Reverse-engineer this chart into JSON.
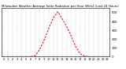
{
  "title": "Milwaukee Weather Average Solar Radiation per Hour W/m2 (Last 24 Hours)",
  "hours": [
    0,
    1,
    2,
    3,
    4,
    5,
    6,
    7,
    8,
    9,
    10,
    11,
    12,
    13,
    14,
    15,
    16,
    17,
    18,
    19,
    20,
    21,
    22,
    23
  ],
  "values": [
    0,
    0,
    0,
    0,
    0,
    0,
    0,
    10,
    80,
    190,
    320,
    440,
    510,
    430,
    340,
    230,
    110,
    30,
    5,
    0,
    0,
    0,
    0,
    0
  ],
  "line_color": "#ff0000",
  "bg_color": "#ffffff",
  "grid_color": "#bbbbbb",
  "ylim": [
    0,
    550
  ],
  "yticks": [
    0,
    100,
    200,
    300,
    400,
    500
  ],
  "ylabel_fontsize": 2.8,
  "xlabel_fontsize": 2.5,
  "title_fontsize": 2.8
}
